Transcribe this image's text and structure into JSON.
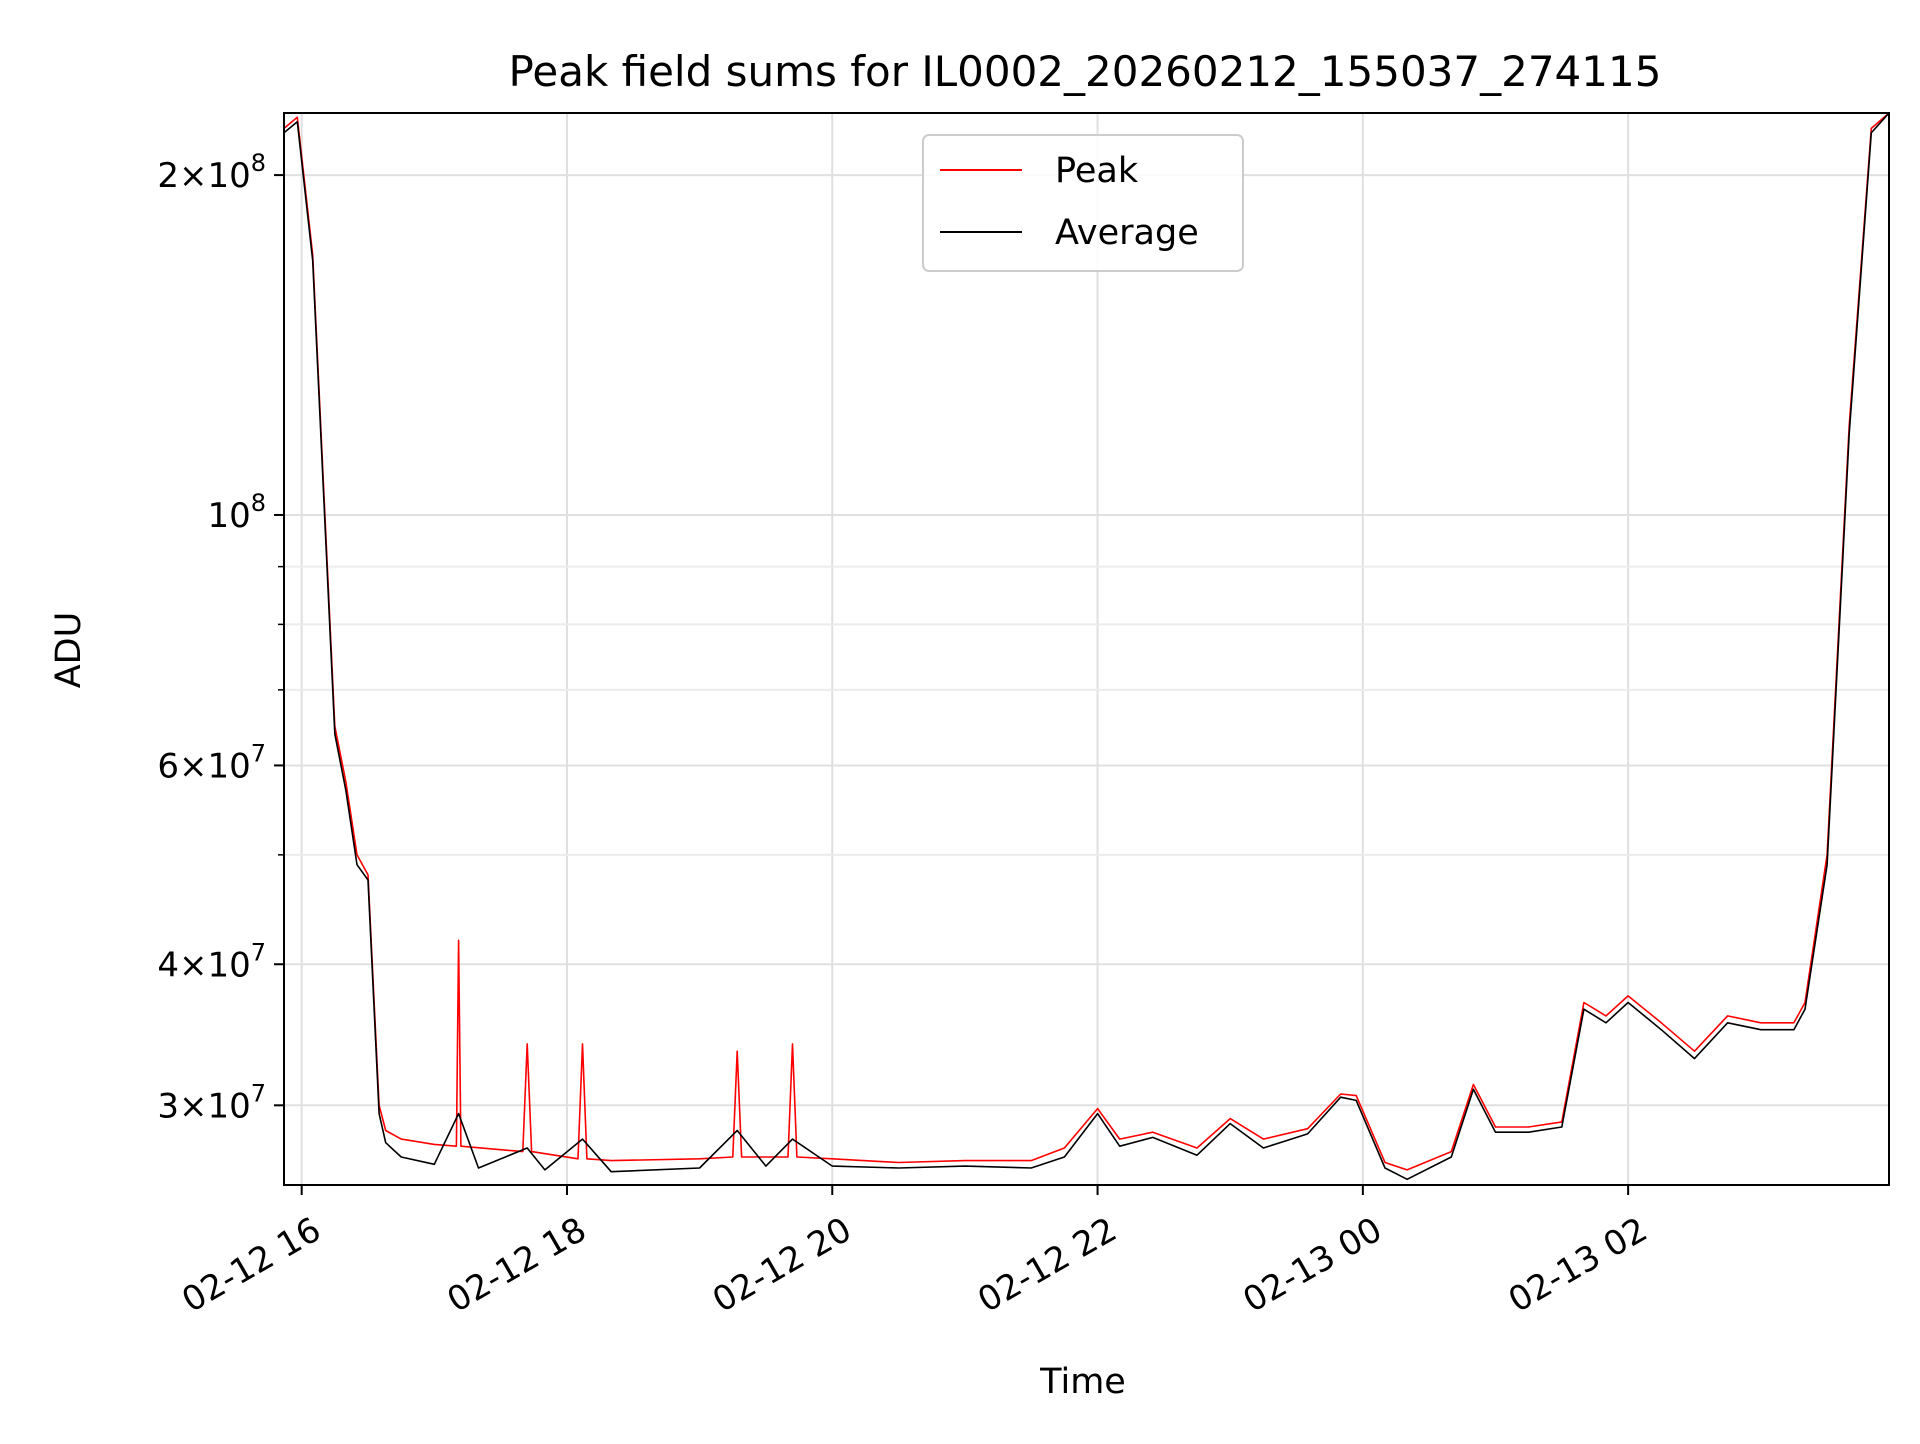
{
  "chart_data": {
    "type": "line",
    "title": "Peak field sums for IL0002_20260212_155037_274115",
    "xlabel": "Time",
    "ylabel": "ADU",
    "yscale": "log",
    "ylim": [
      25500000,
      227000000
    ],
    "xlim": [
      "2026-02-12 15:52",
      "2026-02-13 03:58"
    ],
    "grid": true,
    "legend_position": "top-center",
    "x_ticks": [
      {
        "t": "2026-02-12 16:00",
        "label": "02-12 16"
      },
      {
        "t": "2026-02-12 18:00",
        "label": "02-12 18"
      },
      {
        "t": "2026-02-12 20:00",
        "label": "02-12 20"
      },
      {
        "t": "2026-02-12 22:00",
        "label": "02-12 22"
      },
      {
        "t": "2026-02-13 00:00",
        "label": "02-13 00"
      },
      {
        "t": "2026-02-13 02:00",
        "label": "02-13 02"
      }
    ],
    "y_ticks": [
      {
        "value": 30000000,
        "mant": "3",
        "exp": "7"
      },
      {
        "value": 40000000,
        "mant": "4",
        "exp": "7"
      },
      {
        "value": 60000000,
        "mant": "6",
        "exp": "7"
      },
      {
        "value": 100000000,
        "mant": "",
        "exp": "8"
      },
      {
        "value": 200000000,
        "mant": "2",
        "exp": "8"
      }
    ],
    "y_minor_ticks": [
      50000000,
      70000000,
      80000000,
      90000000
    ],
    "series": [
      {
        "name": "Peak",
        "color": "#ff0000",
        "x": [
          "2026-02-12 15:52",
          "2026-02-12 15:58",
          "2026-02-12 16:05",
          "2026-02-12 16:15",
          "2026-02-12 16:20",
          "2026-02-12 16:25",
          "2026-02-12 16:30",
          "2026-02-12 16:35",
          "2026-02-12 16:38",
          "2026-02-12 16:45",
          "2026-02-12 17:00",
          "2026-02-12 17:10",
          "2026-02-12 17:11",
          "2026-02-12 17:12",
          "2026-02-12 17:40",
          "2026-02-12 17:42",
          "2026-02-12 17:44",
          "2026-02-12 18:05",
          "2026-02-12 18:07",
          "2026-02-12 18:09",
          "2026-02-12 18:20",
          "2026-02-12 19:00",
          "2026-02-12 19:15",
          "2026-02-12 19:17",
          "2026-02-12 19:19",
          "2026-02-12 19:40",
          "2026-02-12 19:42",
          "2026-02-12 19:44",
          "2026-02-12 20:00",
          "2026-02-12 20:30",
          "2026-02-12 21:00",
          "2026-02-12 21:30",
          "2026-02-12 21:45",
          "2026-02-12 22:00",
          "2026-02-12 22:10",
          "2026-02-12 22:25",
          "2026-02-12 22:45",
          "2026-02-12 23:00",
          "2026-02-12 23:15",
          "2026-02-12 23:35",
          "2026-02-12 23:50",
          "2026-02-12 23:57",
          "2026-02-13 00:10",
          "2026-02-13 00:20",
          "2026-02-13 00:40",
          "2026-02-13 00:50",
          "2026-02-13 01:00",
          "2026-02-13 01:15",
          "2026-02-13 01:30",
          "2026-02-13 01:40",
          "2026-02-13 01:50",
          "2026-02-13 02:00",
          "2026-02-13 02:15",
          "2026-02-13 02:30",
          "2026-02-13 02:45",
          "2026-02-13 03:00",
          "2026-02-13 03:15",
          "2026-02-13 03:20",
          "2026-02-13 03:30",
          "2026-02-13 03:40",
          "2026-02-13 03:50",
          "2026-02-13 03:58"
        ],
        "y": [
          220000000,
          225000000,
          170000000,
          65000000,
          58000000,
          50000000,
          48000000,
          30000000,
          28500000,
          28000000,
          27700000,
          27600000,
          42000000,
          27600000,
          27300000,
          34000000,
          27300000,
          26900000,
          34000000,
          26900000,
          26800000,
          26900000,
          27000000,
          33500000,
          27000000,
          27000000,
          34000000,
          27000000,
          26900000,
          26700000,
          26800000,
          26800000,
          27500000,
          29800000,
          28000000,
          28400000,
          27500000,
          29200000,
          28000000,
          28600000,
          30700000,
          30600000,
          26700000,
          26300000,
          27300000,
          31300000,
          28700000,
          28700000,
          29000000,
          37000000,
          36000000,
          37500000,
          35500000,
          33500000,
          36000000,
          35500000,
          35500000,
          37000000,
          50000000,
          120000000,
          220000000,
          227000000
        ]
      },
      {
        "name": "Average",
        "color": "#000000",
        "x": [
          "2026-02-12 15:52",
          "2026-02-12 15:58",
          "2026-02-12 16:05",
          "2026-02-12 16:15",
          "2026-02-12 16:20",
          "2026-02-12 16:25",
          "2026-02-12 16:30",
          "2026-02-12 16:35",
          "2026-02-12 16:38",
          "2026-02-12 16:45",
          "2026-02-12 17:00",
          "2026-02-12 17:11",
          "2026-02-12 17:20",
          "2026-02-12 17:42",
          "2026-02-12 17:50",
          "2026-02-12 18:07",
          "2026-02-12 18:20",
          "2026-02-12 19:00",
          "2026-02-12 19:17",
          "2026-02-12 19:30",
          "2026-02-12 19:42",
          "2026-02-12 20:00",
          "2026-02-12 20:30",
          "2026-02-12 21:00",
          "2026-02-12 21:30",
          "2026-02-12 21:45",
          "2026-02-12 22:00",
          "2026-02-12 22:10",
          "2026-02-12 22:25",
          "2026-02-12 22:45",
          "2026-02-12 23:00",
          "2026-02-12 23:15",
          "2026-02-12 23:35",
          "2026-02-12 23:50",
          "2026-02-12 23:57",
          "2026-02-13 00:10",
          "2026-02-13 00:20",
          "2026-02-13 00:40",
          "2026-02-13 00:50",
          "2026-02-13 01:00",
          "2026-02-13 01:15",
          "2026-02-13 01:30",
          "2026-02-13 01:40",
          "2026-02-13 01:50",
          "2026-02-13 02:00",
          "2026-02-13 02:15",
          "2026-02-13 02:30",
          "2026-02-13 02:45",
          "2026-02-13 03:00",
          "2026-02-13 03:15",
          "2026-02-13 03:20",
          "2026-02-13 03:30",
          "2026-02-13 03:40",
          "2026-02-13 03:50",
          "2026-02-13 03:58"
        ],
        "y": [
          218000000,
          223000000,
          168000000,
          64000000,
          57000000,
          49000000,
          47500000,
          29500000,
          27800000,
          27000000,
          26600000,
          29500000,
          26400000,
          27500000,
          26300000,
          28000000,
          26200000,
          26400000,
          28500000,
          26500000,
          28000000,
          26500000,
          26400000,
          26500000,
          26400000,
          27000000,
          29500000,
          27600000,
          28100000,
          27100000,
          28900000,
          27500000,
          28300000,
          30500000,
          30300000,
          26400000,
          25800000,
          27000000,
          31000000,
          28400000,
          28400000,
          28700000,
          36500000,
          35500000,
          37000000,
          35000000,
          33000000,
          35500000,
          35000000,
          35000000,
          36500000,
          49000000,
          118000000,
          218000000,
          227000000
        ]
      }
    ]
  }
}
